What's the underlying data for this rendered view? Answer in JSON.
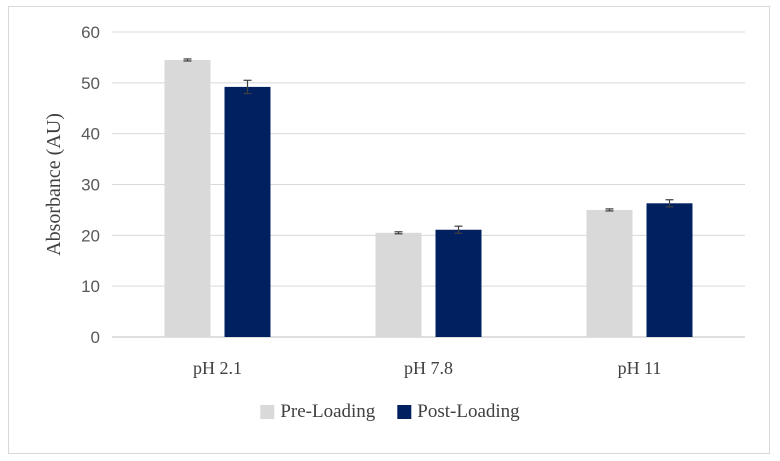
{
  "chart_data": {
    "type": "bar",
    "categories": [
      "pH 2.1",
      "pH 7.8",
      "pH 11"
    ],
    "series": [
      {
        "name": "Pre-Loading",
        "values": [
          54.5,
          20.5,
          25.0
        ],
        "errors": [
          0.2,
          0.2,
          0.2
        ],
        "color": "#d9d9d9"
      },
      {
        "name": "Post-Loading",
        "values": [
          49.2,
          21.1,
          26.3
        ],
        "errors": [
          1.3,
          0.7,
          0.7
        ],
        "color": "#002060"
      }
    ],
    "xlabel": "",
    "ylabel": "Absorbance (AU)",
    "ylim": [
      0,
      60
    ],
    "yticks": [
      0,
      10,
      20,
      30,
      40,
      50,
      60
    ],
    "grid": true,
    "legend": "bottom",
    "error_bars": true
  }
}
